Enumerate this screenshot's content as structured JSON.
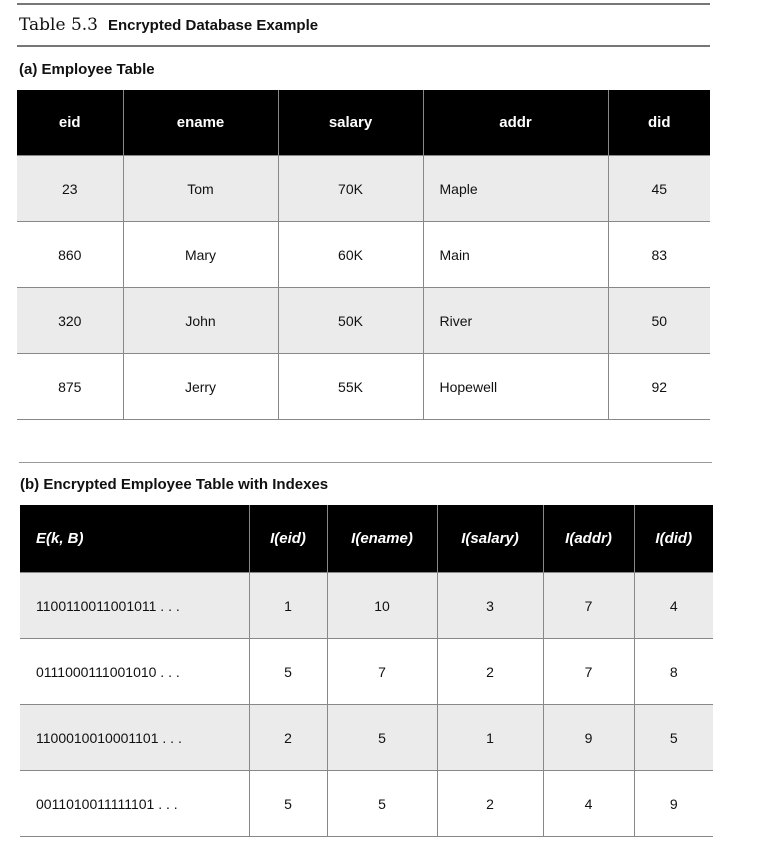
{
  "caption": {
    "number": "Table 5.3",
    "title": "Encrypted Database Example"
  },
  "table_a": {
    "title": "(a) Employee Table",
    "headers": [
      "eid",
      "ename",
      "salary",
      "addr",
      "did"
    ],
    "rows": [
      [
        "23",
        "Tom",
        "70K",
        "Maple",
        "45"
      ],
      [
        "860",
        "Mary",
        "60K",
        "Main",
        "83"
      ],
      [
        "320",
        "John",
        "50K",
        "River",
        "50"
      ],
      [
        "875",
        "Jerry",
        "55K",
        "Hopewell",
        "92"
      ]
    ]
  },
  "table_b": {
    "title": "(b) Encrypted Employee Table with Indexes",
    "headers": [
      "E(k, B)",
      "I(eid)",
      "I(ename)",
      "I(salary)",
      "I(addr)",
      "I(did)"
    ],
    "rows": [
      [
        "1100110011001011 . . .",
        "1",
        "10",
        "3",
        "7",
        "4"
      ],
      [
        "0111000111001010 . . .",
        "5",
        "7",
        "2",
        "7",
        "8"
      ],
      [
        "1100010010001101 . . .",
        "2",
        "5",
        "1",
        "9",
        "5"
      ],
      [
        "0011010011111101 . . .",
        "5",
        "5",
        "2",
        "4",
        "9"
      ]
    ]
  }
}
